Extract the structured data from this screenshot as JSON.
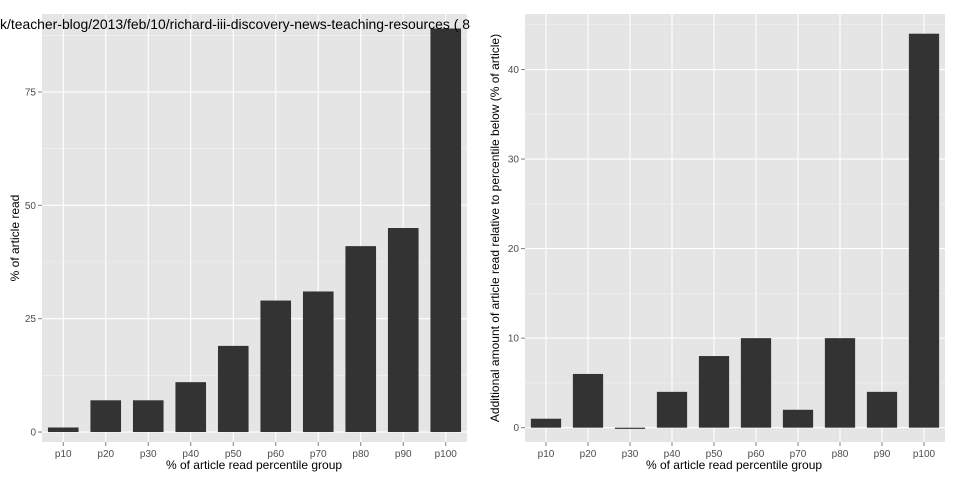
{
  "chart_data": [
    {
      "type": "bar",
      "title": "k/teacher-blog/2013/feb/10/richard-iii-discovery-news-teaching-resources ( 8",
      "xlabel": "% of article read percentile group",
      "ylabel": "% of article read",
      "categories": [
        "p10",
        "p20",
        "p30",
        "p40",
        "p50",
        "p60",
        "p70",
        "p80",
        "p90",
        "p100"
      ],
      "values": [
        1,
        7,
        7,
        11,
        19,
        29,
        31,
        41,
        45,
        89
      ],
      "ylim": [
        -2.2,
        92.2
      ],
      "yticks": [
        0,
        25,
        50,
        75
      ],
      "yticklabels": [
        "0",
        "25",
        "50",
        "75"
      ],
      "grid": true,
      "colors": {
        "panel": "#e5e5e5",
        "grid": "#ffffff",
        "bar": "#333333"
      }
    },
    {
      "type": "bar",
      "title": "",
      "xlabel": "% of article read percentile group",
      "ylabel": "Additional amount of article read relative to percentile below (% of article)",
      "categories": [
        "p10",
        "p20",
        "p30",
        "p40",
        "p50",
        "p60",
        "p70",
        "p80",
        "p90",
        "p100"
      ],
      "values": [
        1,
        6,
        0,
        4,
        8,
        10,
        2,
        10,
        4,
        44
      ],
      "ylim": [
        -1.6,
        46.2
      ],
      "yticks": [
        0,
        10,
        20,
        30,
        40
      ],
      "yticklabels": [
        "0",
        "10",
        "20",
        "30",
        "40"
      ],
      "grid": true,
      "colors": {
        "panel": "#e5e5e5",
        "grid": "#ffffff",
        "bar": "#333333"
      }
    }
  ]
}
